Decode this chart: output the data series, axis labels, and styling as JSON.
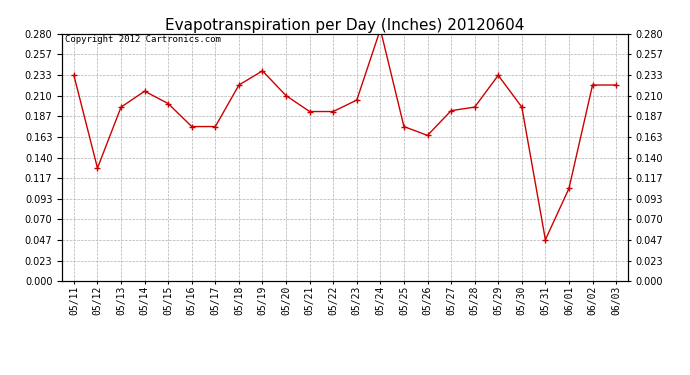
{
  "title": "Evapotranspiration per Day (Inches) 20120604",
  "copyright": "Copyright 2012 Cartronics.com",
  "dates": [
    "05/11",
    "05/12",
    "05/13",
    "05/14",
    "05/15",
    "05/16",
    "05/17",
    "05/18",
    "05/19",
    "05/20",
    "05/21",
    "05/22",
    "05/23",
    "05/24",
    "05/25",
    "05/26",
    "05/27",
    "05/28",
    "05/29",
    "05/30",
    "05/31",
    "06/01",
    "06/02",
    "06/03"
  ],
  "values": [
    0.233,
    0.128,
    0.197,
    0.215,
    0.201,
    0.175,
    0.175,
    0.222,
    0.238,
    0.21,
    0.192,
    0.192,
    0.205,
    0.285,
    0.175,
    0.165,
    0.193,
    0.197,
    0.233,
    0.197,
    0.047,
    0.105,
    0.222,
    0.222
  ],
  "line_color": "#cc0000",
  "marker": "+",
  "marker_color": "#cc0000",
  "bg_color": "#ffffff",
  "plot_bg_color": "#ffffff",
  "grid_color": "#b0b0b0",
  "ylim": [
    0.0,
    0.28
  ],
  "yticks": [
    0.0,
    0.023,
    0.047,
    0.07,
    0.093,
    0.117,
    0.14,
    0.163,
    0.187,
    0.21,
    0.233,
    0.257,
    0.28
  ],
  "title_fontsize": 11,
  "copyright_fontsize": 6.5,
  "tick_fontsize": 7
}
